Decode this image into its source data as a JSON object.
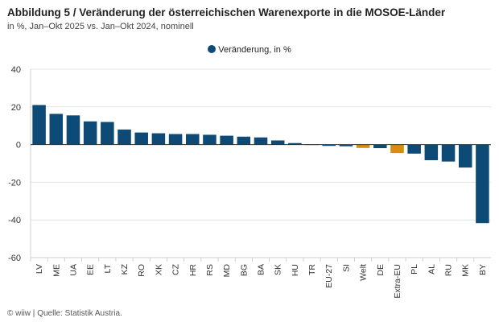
{
  "header": {
    "title": "Abbildung 5 / Veränderung der österreichischen Warenexporte in die MOSOE-Länder",
    "subtitle": "in %, Jan–Okt 2025 vs. Jan–Okt 2024, nominell"
  },
  "footer": {
    "source": "© wiiw | Quelle: Statistik Austria."
  },
  "colors": {
    "default": "#0d4a76",
    "highlight": "#d68d10",
    "grid": "#e4e4e4",
    "zero": "#333333"
  },
  "chart_data": {
    "type": "bar",
    "legend": {
      "label": "Veränderung, in %",
      "position": "top-center"
    },
    "ylim": [
      -60,
      40
    ],
    "yticks": [
      40,
      20,
      0,
      -20,
      -40,
      -60
    ],
    "grid": true,
    "categories": [
      "LV",
      "ME",
      "UA",
      "EE",
      "LT",
      "KZ",
      "RO",
      "XK",
      "CZ",
      "HR",
      "RS",
      "MD",
      "BG",
      "BA",
      "SK",
      "HU",
      "TR",
      "EU-27",
      "SI",
      "Welt",
      "DE",
      "Extra-EU",
      "PL",
      "AL",
      "RU",
      "MK",
      "BY"
    ],
    "highlight": [
      "Welt",
      "Extra-EU"
    ],
    "series": [
      {
        "name": "Veränderung, in %",
        "values": [
          21.0,
          16.3,
          15.5,
          12.3,
          12.0,
          8.0,
          6.4,
          6.0,
          5.6,
          5.6,
          5.2,
          4.7,
          4.2,
          3.8,
          2.2,
          0.8,
          0.1,
          -0.7,
          -0.9,
          -1.8,
          -1.9,
          -4.5,
          -4.8,
          -8.3,
          -9.0,
          -12.2,
          -41.7
        ]
      }
    ]
  }
}
